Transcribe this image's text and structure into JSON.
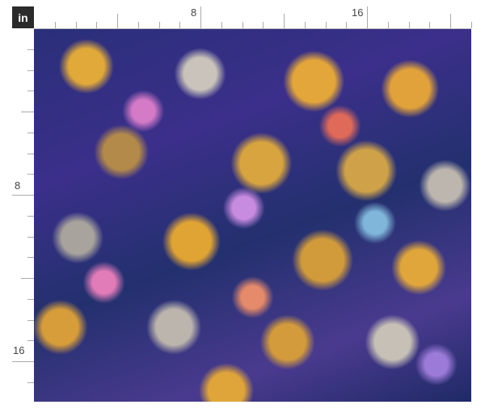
{
  "ruler": {
    "unit_label": "in",
    "horizontal_labels": [
      "8",
      "16"
    ],
    "vertical_labels": [
      "8",
      "16"
    ]
  },
  "fabric": {
    "description_colors": {
      "background": "#2a2f7a",
      "accent": "#e0a93a"
    }
  }
}
